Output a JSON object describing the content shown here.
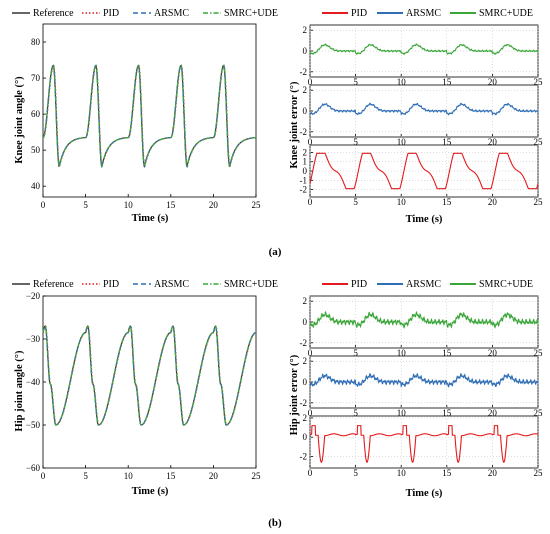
{
  "figure": {
    "panel_labels": [
      "(a)",
      "(b)"
    ],
    "colors": {
      "Reference": "#333333",
      "PID": "#e41a1c",
      "ARSMC": "#2f6db5",
      "SMRC+UDE": "#3aa63a"
    }
  },
  "chart_data": [
    {
      "type": "line",
      "panel": "a",
      "xlabel": "Time (s)",
      "ylabel": "Knee joint angle (°)",
      "xlim": [
        0,
        25
      ],
      "ylim": [
        37,
        85
      ],
      "xticks": [
        "0",
        "5",
        "10",
        "15",
        "20",
        "25"
      ],
      "yticks": [
        "40",
        "50",
        "60",
        "70",
        "80"
      ],
      "legend": [
        "Reference",
        "PID",
        "ARSMC",
        "SMRC+UDE"
      ],
      "legend_position": "top",
      "series": [
        {
          "name": "Reference",
          "style": "solid",
          "signal": {
            "period": 5,
            "phase": 0.0,
            "peak_time": 1.2,
            "peak": 73.5,
            "trough_time": 1.9,
            "trough": 45.5,
            "plateau": 53.5
          }
        },
        {
          "name": "PID",
          "style": "dotted",
          "signal": {
            "period": 5,
            "phase": 0.05,
            "peak_time": 1.2,
            "peak": 73.5,
            "trough_time": 1.9,
            "trough": 45.5,
            "plateau": 53.5
          }
        },
        {
          "name": "ARSMC",
          "style": "dashed",
          "signal": {
            "period": 5,
            "phase": 0.02,
            "peak_time": 1.2,
            "peak": 73.5,
            "trough_time": 1.9,
            "trough": 45.5,
            "plateau": 53.5
          }
        },
        {
          "name": "SMRC+UDE",
          "style": "dashdot",
          "signal": {
            "period": 5,
            "phase": 0.01,
            "peak_time": 1.2,
            "peak": 73.5,
            "trough_time": 1.9,
            "trough": 45.5,
            "plateau": 53.5
          }
        }
      ]
    },
    {
      "type": "line",
      "panel": "a",
      "ylabel": "Knee joint error (°)",
      "xlabel": "Time (s)",
      "legend": [
        "PID",
        "ARSMC",
        "SMRC+UDE"
      ],
      "legend_position": "top",
      "subplots": [
        {
          "series": "SMRC+UDE",
          "xlim": [
            0,
            25
          ],
          "ylim": [
            -2.5,
            2.5
          ],
          "yticks": [
            "-2",
            "0",
            "2"
          ],
          "xticks": [
            "0",
            "5",
            "10",
            "15",
            "20",
            "25"
          ],
          "amplitude": 0.5,
          "noise": 0.08
        },
        {
          "series": "ARSMC",
          "xlim": [
            0,
            25
          ],
          "ylim": [
            -2.5,
            2.5
          ],
          "yticks": [
            "-2",
            "0",
            "2"
          ],
          "xticks": [
            "0",
            "5",
            "10",
            "15",
            "20",
            "25"
          ],
          "amplitude": 0.55,
          "noise": 0.1
        },
        {
          "series": "PID",
          "xlim": [
            0,
            25
          ],
          "ylim": [
            -2.8,
            2.8
          ],
          "yticks": [
            "-2",
            "-1",
            "0",
            "1",
            "2"
          ],
          "xticks": [
            "0",
            "5",
            "10",
            "15",
            "20",
            "25"
          ],
          "amplitude": 1.9,
          "noise": 0.0
        }
      ]
    },
    {
      "type": "line",
      "panel": "b",
      "xlabel": "Time (s)",
      "ylabel": "Hip joint angle (°)",
      "xlim": [
        0,
        25
      ],
      "ylim": [
        -60,
        -20
      ],
      "xticks": [
        "0",
        "5",
        "10",
        "15",
        "20",
        "25"
      ],
      "yticks": [
        "−60",
        "−50",
        "−40",
        "−30",
        "−20"
      ],
      "legend": [
        "Reference",
        "PID",
        "ARSMC",
        "SMRC+UDE"
      ],
      "legend_position": "top",
      "series": [
        {
          "name": "Reference",
          "style": "solid",
          "signal": {
            "period": 5,
            "phase": 0.0,
            "peak_time": 0.25,
            "peak": -27,
            "trough_time": 1.5,
            "trough": -50,
            "knee": -40.5
          }
        },
        {
          "name": "PID",
          "style": "dotted",
          "signal": {
            "period": 5,
            "phase": 0.05,
            "peak_time": 0.25,
            "peak": -27,
            "trough_time": 1.5,
            "trough": -50,
            "knee": -40.5
          }
        },
        {
          "name": "ARSMC",
          "style": "dashed",
          "signal": {
            "period": 5,
            "phase": 0.02,
            "peak_time": 0.25,
            "peak": -27,
            "trough_time": 1.5,
            "trough": -50,
            "knee": -40.5
          }
        },
        {
          "name": "SMRC+UDE",
          "style": "dashdot",
          "signal": {
            "period": 5,
            "phase": 0.01,
            "peak_time": 0.25,
            "peak": -27,
            "trough_time": 1.5,
            "trough": -50,
            "knee": -40.5
          }
        }
      ]
    },
    {
      "type": "line",
      "panel": "b",
      "ylabel": "Hip joint error (°)",
      "xlabel": "Time (s)",
      "legend": [
        "PID",
        "ARSMC",
        "SMRC+UDE"
      ],
      "legend_position": "top",
      "subplots": [
        {
          "series": "SMRC+UDE",
          "xlim": [
            0,
            25
          ],
          "ylim": [
            -2.5,
            2.5
          ],
          "yticks": [
            "-2",
            "0",
            "2"
          ],
          "xticks": [
            "0",
            "5",
            "10",
            "15",
            "20",
            "25"
          ],
          "amplitude": 0.6,
          "noise": 0.25
        },
        {
          "series": "ARSMC",
          "xlim": [
            0,
            25
          ],
          "ylim": [
            -2.5,
            2.5
          ],
          "yticks": [
            "-2",
            "0",
            "2"
          ],
          "xticks": [
            "0",
            "5",
            "10",
            "15",
            "20",
            "25"
          ],
          "amplitude": 0.5,
          "noise": 0.22
        },
        {
          "series": "PID",
          "xlim": [
            0,
            25
          ],
          "ylim": [
            -3.2,
            2.2
          ],
          "yticks": [
            "-2",
            "0",
            "2"
          ],
          "xticks": [
            "0",
            "5",
            "10",
            "15",
            "20",
            "25"
          ],
          "amplitude": 2.6,
          "noise": 0.0
        }
      ]
    }
  ]
}
